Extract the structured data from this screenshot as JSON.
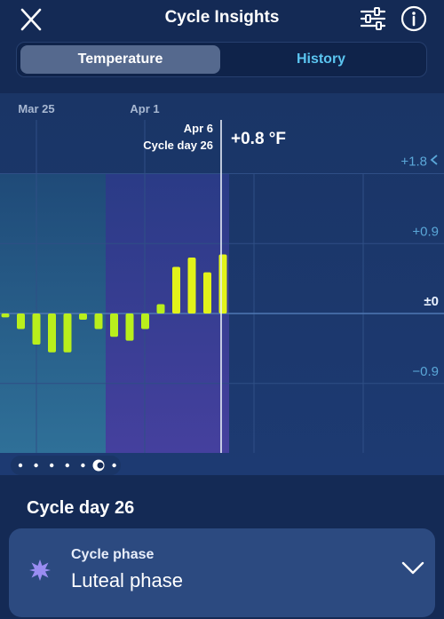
{
  "header": {
    "title": "Cycle Insights",
    "close_icon": "close-icon",
    "filter_icon": "sliders-icon",
    "info_icon": "info-icon"
  },
  "tabs": [
    {
      "label": "Temperature",
      "active": true
    },
    {
      "label": "History",
      "active": false
    }
  ],
  "chart_data": {
    "type": "bar",
    "x_tick_labels": [
      "Mar 25",
      "Apr 1"
    ],
    "y_tick_labels": [
      "+1.8",
      "+0.9",
      "±0",
      "−0.9"
    ],
    "y_ticks": [
      1.8,
      0.9,
      0,
      -0.9
    ],
    "ylim": [
      -1.8,
      2.0
    ],
    "values": [
      -0.05,
      -0.2,
      -0.4,
      -0.5,
      -0.5,
      -0.08,
      -0.2,
      -0.3,
      -0.35,
      -0.2,
      0.12,
      0.6,
      0.72,
      0.53,
      0.76
    ],
    "selected": {
      "date": "Apr 6",
      "cycle_day_label": "Cycle day 26",
      "value_label": "+0.8 °F"
    },
    "colors": {
      "bar": "#b9ef1c",
      "bar_highlight": "#e2f21a",
      "follicular_shade": "#2e6890",
      "luteal_shade": "#3c3d94"
    }
  },
  "page_dots": {
    "count": 7,
    "active_index": 5
  },
  "cycle_day_heading": "Cycle day 26",
  "phase_card": {
    "title": "Cycle phase",
    "value": "Luteal phase",
    "icon": "sun-burst-icon",
    "chevron": "chevron-down-icon"
  }
}
